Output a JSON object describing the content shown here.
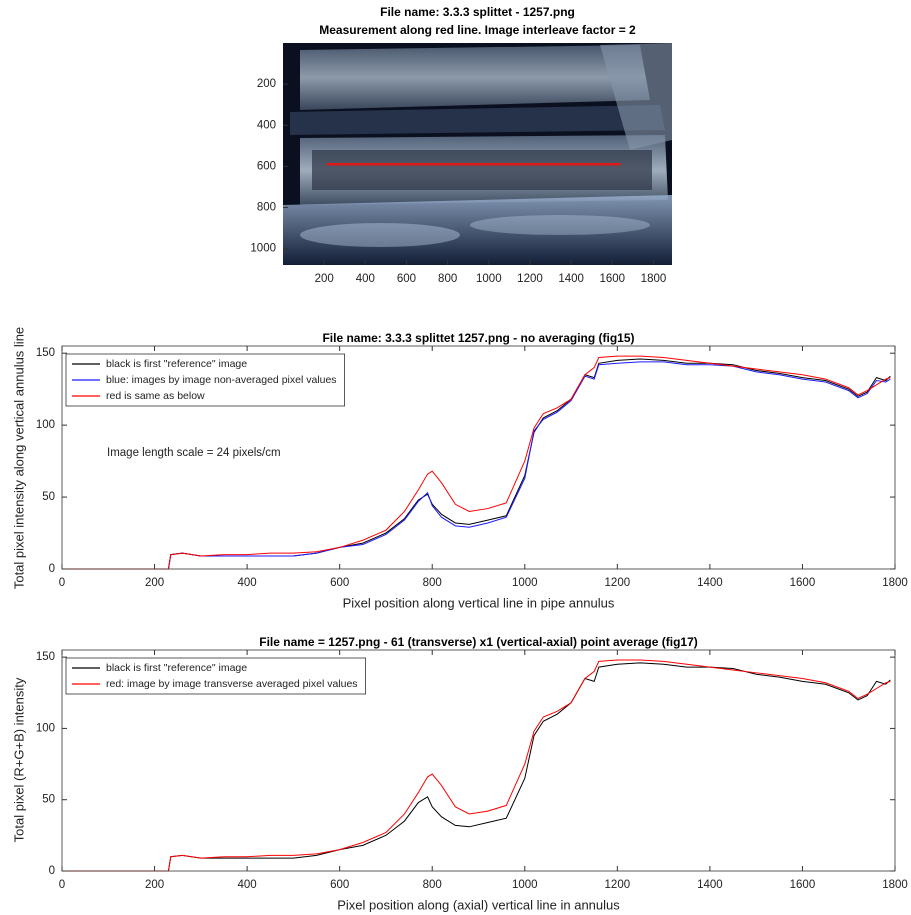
{
  "chart_data": [
    {
      "type": "image",
      "title": "File name: 3.3.3 splittet - 1257.png",
      "subtitle": "Measurement along red line. Image interleave factor = 2",
      "xlim": [
        0,
        1890
      ],
      "ylim": [
        1080,
        0
      ],
      "xticks": [
        200,
        400,
        600,
        800,
        1000,
        1200,
        1400,
        1600,
        1800
      ],
      "yticks": [
        200,
        400,
        600,
        800,
        1000
      ],
      "line": {
        "x": [
          212,
          1640
        ],
        "y": [
          590,
          590
        ],
        "color": "#e01818"
      }
    },
    {
      "type": "line",
      "title": "File name: 3.3.3 splittet 1257.png - no averaging (fig15)",
      "xlabel": "Pixel position along vertical line in pipe annulus",
      "ylabel": "Total pixel intensity along vertical annulus line",
      "annotation": "Image length scale =  24 pixels/cm",
      "xlim": [
        0,
        1800
      ],
      "ylim": [
        0,
        155
      ],
      "xticks": [
        0,
        200,
        400,
        600,
        800,
        1000,
        1200,
        1400,
        1600,
        1800
      ],
      "yticks": [
        0,
        50,
        100,
        150
      ],
      "legend": "upper left",
      "x": [
        0,
        230,
        235,
        260,
        300,
        350,
        400,
        450,
        500,
        550,
        600,
        650,
        700,
        740,
        770,
        790,
        800,
        820,
        850,
        880,
        920,
        960,
        1000,
        1020,
        1040,
        1070,
        1100,
        1130,
        1150,
        1160,
        1200,
        1250,
        1300,
        1350,
        1400,
        1450,
        1500,
        1550,
        1600,
        1650,
        1700,
        1720,
        1740,
        1760,
        1780,
        1790
      ],
      "series": [
        {
          "name": "black is first \"reference\" image",
          "color": "#000000",
          "values": [
            0,
            0,
            10,
            11,
            9,
            9,
            9,
            9,
            9,
            11,
            15,
            18,
            25,
            35,
            48,
            52,
            45,
            38,
            32,
            31,
            34,
            37,
            65,
            95,
            105,
            110,
            118,
            135,
            133,
            143,
            145,
            146,
            145,
            143,
            143,
            142,
            138,
            136,
            133,
            131,
            125,
            120,
            123,
            133,
            131,
            134
          ]
        },
        {
          "name": "blue: images by image non-averaged pixel values",
          "color": "#1a1aff",
          "values": [
            0,
            0,
            10,
            11,
            9,
            9,
            9,
            9,
            9,
            11,
            15,
            17,
            24,
            34,
            47,
            53,
            44,
            36,
            30,
            29,
            32,
            36,
            63,
            96,
            104,
            109,
            117,
            134,
            132,
            142,
            143,
            144,
            144,
            142,
            142,
            141,
            137,
            135,
            132,
            130,
            124,
            119,
            122,
            131,
            130,
            132
          ]
        },
        {
          "name": "red is same as below",
          "color": "#ff0000",
          "values": [
            0,
            0,
            10,
            11,
            9,
            10,
            10,
            11,
            11,
            12,
            15,
            20,
            27,
            40,
            55,
            66,
            68,
            60,
            45,
            40,
            42,
            46,
            75,
            98,
            108,
            112,
            118,
            135,
            140,
            147,
            148,
            148,
            147,
            145,
            143,
            141,
            139,
            137,
            135,
            132,
            126,
            121,
            124,
            128,
            132,
            133
          ]
        }
      ]
    },
    {
      "type": "line",
      "title": "File name = 1257.png - 61 (transverse) x1 (vertical-axial) point average (fig17)",
      "xlabel": "Pixel position along (axial) vertical line in annulus",
      "ylabel": "Total pixel (R+G+B) intensity",
      "xlim": [
        0,
        1800
      ],
      "ylim": [
        0,
        155
      ],
      "xticks": [
        0,
        200,
        400,
        600,
        800,
        1000,
        1200,
        1400,
        1600,
        1800
      ],
      "yticks": [
        0,
        50,
        100,
        150
      ],
      "legend": "upper left",
      "x": [
        0,
        230,
        235,
        260,
        300,
        350,
        400,
        450,
        500,
        550,
        600,
        650,
        700,
        740,
        770,
        790,
        800,
        820,
        850,
        880,
        920,
        960,
        1000,
        1020,
        1040,
        1070,
        1100,
        1130,
        1150,
        1160,
        1200,
        1250,
        1300,
        1350,
        1400,
        1450,
        1500,
        1550,
        1600,
        1650,
        1700,
        1720,
        1740,
        1760,
        1780,
        1790
      ],
      "series": [
        {
          "name": "black is first \"reference\" image",
          "color": "#000000",
          "values": [
            0,
            0,
            10,
            11,
            9,
            9,
            9,
            9,
            9,
            11,
            15,
            18,
            25,
            35,
            48,
            52,
            45,
            38,
            32,
            31,
            34,
            37,
            65,
            95,
            105,
            110,
            118,
            135,
            133,
            143,
            145,
            146,
            145,
            143,
            143,
            142,
            138,
            136,
            133,
            131,
            125,
            120,
            123,
            133,
            131,
            134
          ]
        },
        {
          "name": "red: image by image transverse averaged pixel values",
          "color": "#ff0000",
          "values": [
            0,
            0,
            10,
            11,
            9,
            10,
            10,
            11,
            11,
            12,
            15,
            20,
            27,
            40,
            55,
            66,
            68,
            60,
            45,
            40,
            42,
            46,
            75,
            98,
            108,
            112,
            118,
            135,
            140,
            147,
            148,
            148,
            147,
            145,
            143,
            141,
            139,
            137,
            135,
            132,
            126,
            121,
            124,
            128,
            132,
            133
          ]
        }
      ]
    }
  ]
}
